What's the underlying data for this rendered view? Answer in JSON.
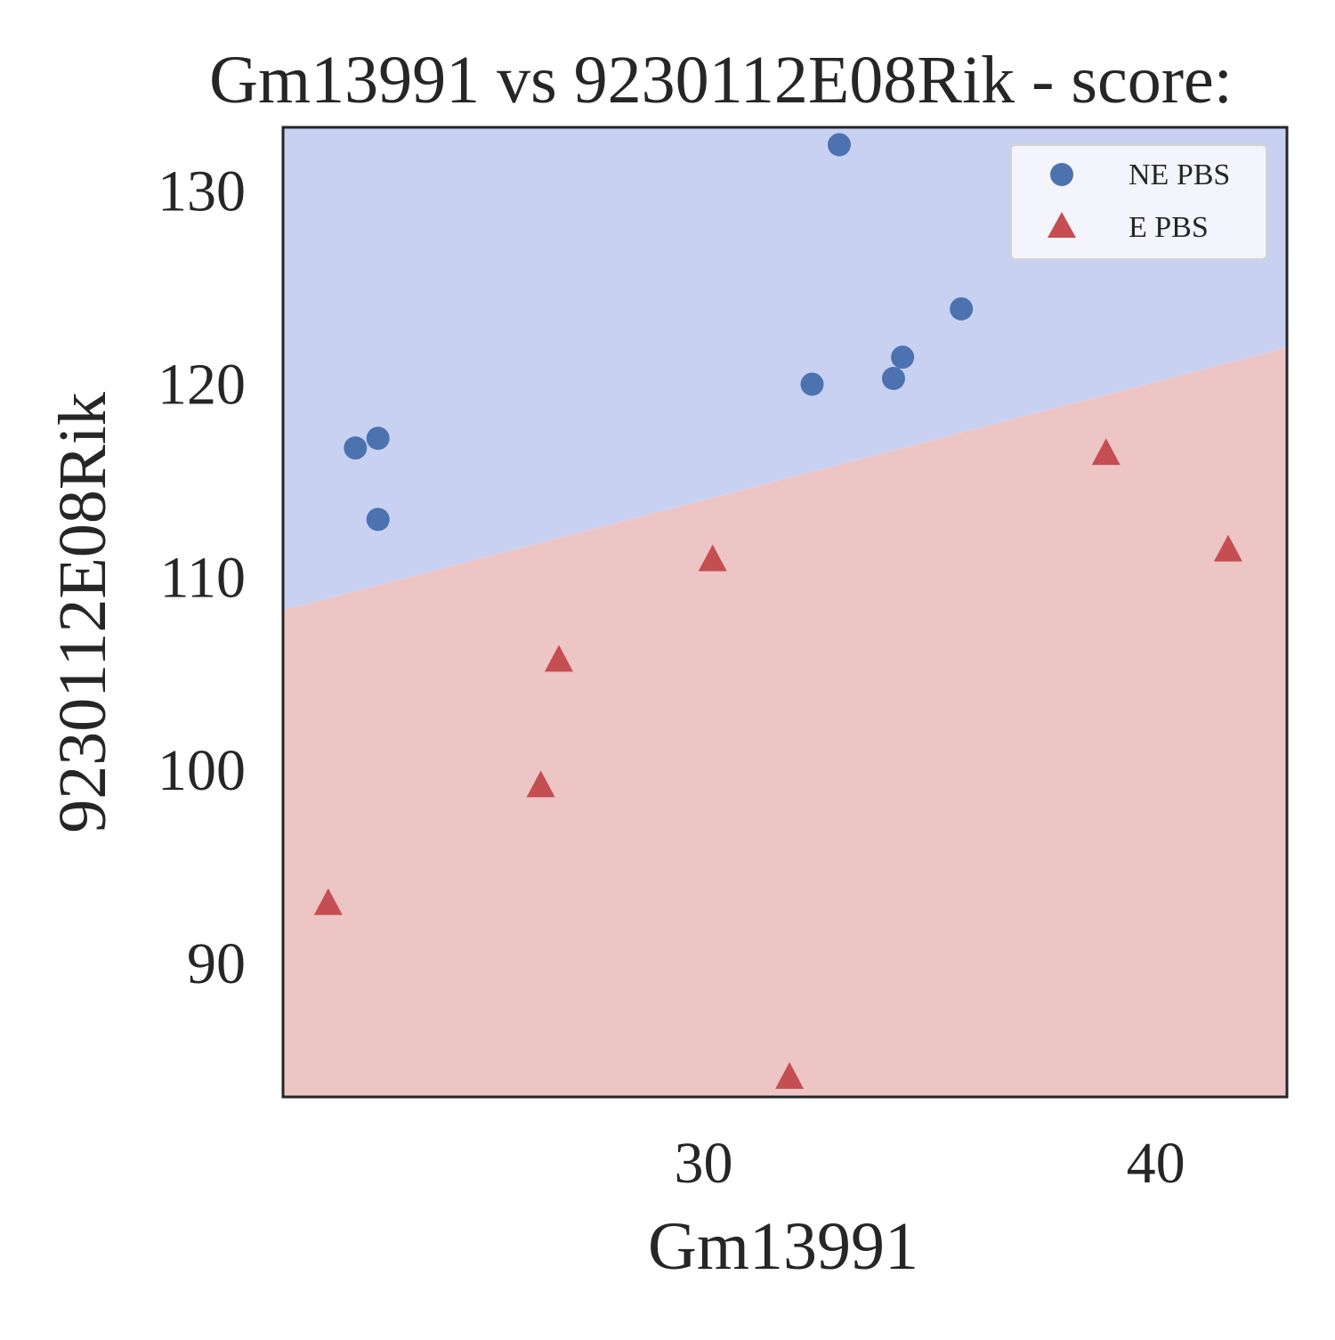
{
  "chart_data": {
    "type": "scatter",
    "title": "Gm13991 vs 9230112E08Rik - score:",
    "xlabel": "Gm13991",
    "ylabel": "9230112E08Rik",
    "xlim": [
      20.7,
      42.9
    ],
    "ylim": [
      83.0,
      133.2
    ],
    "xticks": [
      30,
      40
    ],
    "yticks": [
      90,
      100,
      110,
      120,
      130
    ],
    "grid": false,
    "legend_position": "top-right",
    "decision_boundary": {
      "points": [
        [
          20.7,
          108.2
        ],
        [
          42.9,
          121.8
        ]
      ],
      "above_class": "NE PBS",
      "below_class": "E PBS",
      "above_color": "#c8d1f2",
      "below_color": "#eec5c5"
    },
    "series": [
      {
        "name": "NE PBS",
        "marker": "circle",
        "color": "#4c72b0",
        "points": [
          [
            22.3,
            116.6
          ],
          [
            22.8,
            117.1
          ],
          [
            22.8,
            112.9
          ],
          [
            32.4,
            119.9
          ],
          [
            33.0,
            132.3
          ],
          [
            34.2,
            120.2
          ],
          [
            34.4,
            121.3
          ],
          [
            35.7,
            123.8
          ]
        ]
      },
      {
        "name": "E PBS",
        "marker": "triangle",
        "color": "#c44e52",
        "points": [
          [
            21.7,
            93.0
          ],
          [
            26.4,
            99.1
          ],
          [
            26.8,
            105.6
          ],
          [
            30.2,
            110.8
          ],
          [
            31.9,
            84.0
          ],
          [
            38.9,
            116.3
          ],
          [
            41.6,
            111.3
          ]
        ]
      }
    ]
  }
}
